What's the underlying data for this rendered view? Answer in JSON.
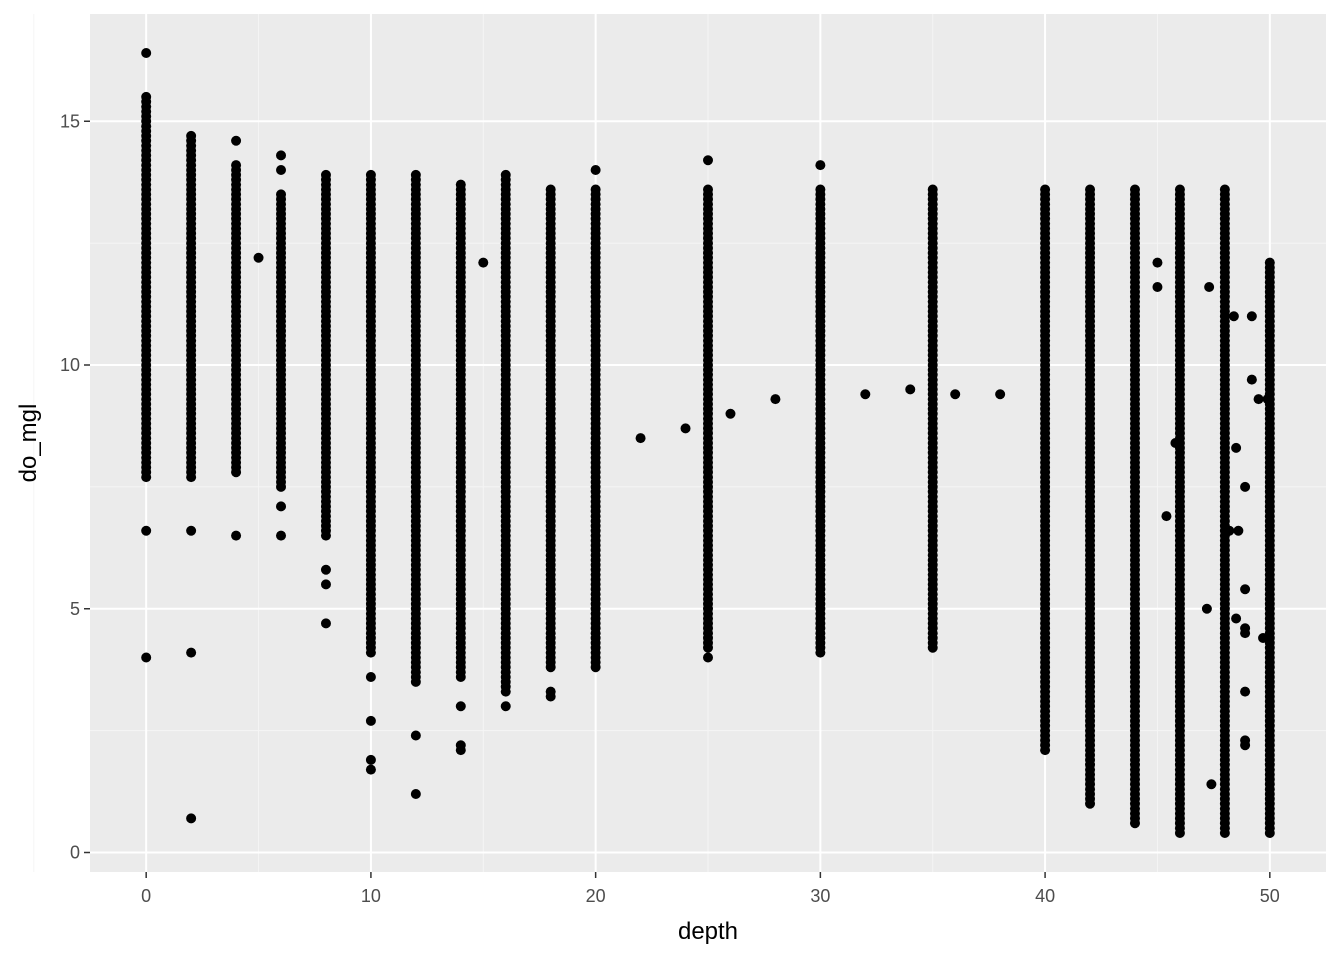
{
  "chart_data": {
    "type": "scatter",
    "title": "",
    "xlabel": "depth",
    "ylabel": "do_mgl",
    "xlim": [
      -2.5,
      52.5
    ],
    "ylim": [
      -0.4,
      17.2
    ],
    "x_ticks": [
      0,
      10,
      20,
      30,
      40,
      50
    ],
    "y_ticks": [
      0,
      5,
      10,
      15
    ],
    "grid": true,
    "legend": "none",
    "colors": {
      "panel": "#ebebeb",
      "grid_major": "#ffffff",
      "grid_minor": "#f5f5f5",
      "point": "#000000",
      "tick_label": "#4d4d4d",
      "tick_mark": "#333333"
    },
    "columns": [
      {
        "x": 0,
        "y_min": 7.7,
        "y_max": 15.5,
        "extra": [
          16.4,
          6.6,
          4.0
        ]
      },
      {
        "x": 2,
        "y_min": 7.7,
        "y_max": 14.7,
        "extra": [
          6.6,
          4.1,
          0.7
        ]
      },
      {
        "x": 4,
        "y_min": 7.8,
        "y_max": 14.1,
        "extra": [
          14.6,
          6.5
        ]
      },
      {
        "x": 6,
        "y_min": 7.5,
        "y_max": 13.5,
        "extra": [
          14.3,
          14.0,
          7.1,
          6.5
        ]
      },
      {
        "x": 8,
        "y_min": 6.5,
        "y_max": 13.9,
        "extra": [
          5.8,
          5.5,
          4.7
        ]
      },
      {
        "x": 10,
        "y_min": 4.1,
        "y_max": 13.9,
        "extra": [
          3.6,
          2.7,
          1.9,
          1.7
        ]
      },
      {
        "x": 12,
        "y_min": 3.5,
        "y_max": 13.9,
        "extra": [
          2.4,
          1.2
        ]
      },
      {
        "x": 14,
        "y_min": 3.6,
        "y_max": 13.7,
        "extra": [
          3.0,
          2.2,
          2.1
        ]
      },
      {
        "x": 16,
        "y_min": 3.3,
        "y_max": 13.9,
        "extra": [
          3.0
        ]
      },
      {
        "x": 18,
        "y_min": 3.8,
        "y_max": 13.6,
        "extra": [
          3.3,
          3.2
        ]
      },
      {
        "x": 20,
        "y_min": 3.8,
        "y_max": 13.6,
        "extra": [
          14.0
        ]
      },
      {
        "x": 25,
        "y_min": 4.2,
        "y_max": 13.6,
        "extra": [
          14.2,
          4.0
        ]
      },
      {
        "x": 30,
        "y_min": 4.1,
        "y_max": 13.6,
        "extra": [
          14.1
        ]
      },
      {
        "x": 35,
        "y_min": 4.2,
        "y_max": 13.6,
        "extra": []
      },
      {
        "x": 40,
        "y_min": 2.1,
        "y_max": 13.6,
        "extra": []
      },
      {
        "x": 42,
        "y_min": 1.0,
        "y_max": 13.6,
        "extra": []
      },
      {
        "x": 44,
        "y_min": 0.6,
        "y_max": 13.6,
        "extra": []
      },
      {
        "x": 46,
        "y_min": 0.4,
        "y_max": 13.6,
        "extra": []
      },
      {
        "x": 48,
        "y_min": 0.4,
        "y_max": 13.6,
        "extra": []
      },
      {
        "x": 50,
        "y_min": 0.4,
        "y_max": 12.1,
        "extra": []
      }
    ],
    "points": [
      {
        "x": 5,
        "y": 12.2
      },
      {
        "x": 15,
        "y": 12.1
      },
      {
        "x": 22,
        "y": 8.5
      },
      {
        "x": 24,
        "y": 8.7
      },
      {
        "x": 26,
        "y": 9.0
      },
      {
        "x": 28,
        "y": 9.3
      },
      {
        "x": 32,
        "y": 9.4
      },
      {
        "x": 34,
        "y": 9.5
      },
      {
        "x": 36,
        "y": 9.4
      },
      {
        "x": 38,
        "y": 9.4
      },
      {
        "x": 45,
        "y": 12.1
      },
      {
        "x": 45,
        "y": 11.6
      },
      {
        "x": 45.4,
        "y": 6.9
      },
      {
        "x": 45.8,
        "y": 8.4
      },
      {
        "x": 47.2,
        "y": 5.0
      },
      {
        "x": 47.3,
        "y": 11.6
      },
      {
        "x": 47.4,
        "y": 1.4
      },
      {
        "x": 48.2,
        "y": 6.6
      },
      {
        "x": 48.4,
        "y": 11.0
      },
      {
        "x": 48.5,
        "y": 8.3
      },
      {
        "x": 48.5,
        "y": 4.8
      },
      {
        "x": 48.6,
        "y": 6.6
      },
      {
        "x": 48.9,
        "y": 7.5
      },
      {
        "x": 48.9,
        "y": 5.4
      },
      {
        "x": 48.9,
        "y": 4.6
      },
      {
        "x": 48.9,
        "y": 4.5
      },
      {
        "x": 48.9,
        "y": 3.3
      },
      {
        "x": 48.9,
        "y": 2.3
      },
      {
        "x": 48.9,
        "y": 2.2
      },
      {
        "x": 49.2,
        "y": 11.0
      },
      {
        "x": 49.2,
        "y": 9.7
      },
      {
        "x": 49.5,
        "y": 9.3
      },
      {
        "x": 49.7,
        "y": 4.4
      },
      {
        "x": 49.9,
        "y": 9.3
      }
    ]
  }
}
